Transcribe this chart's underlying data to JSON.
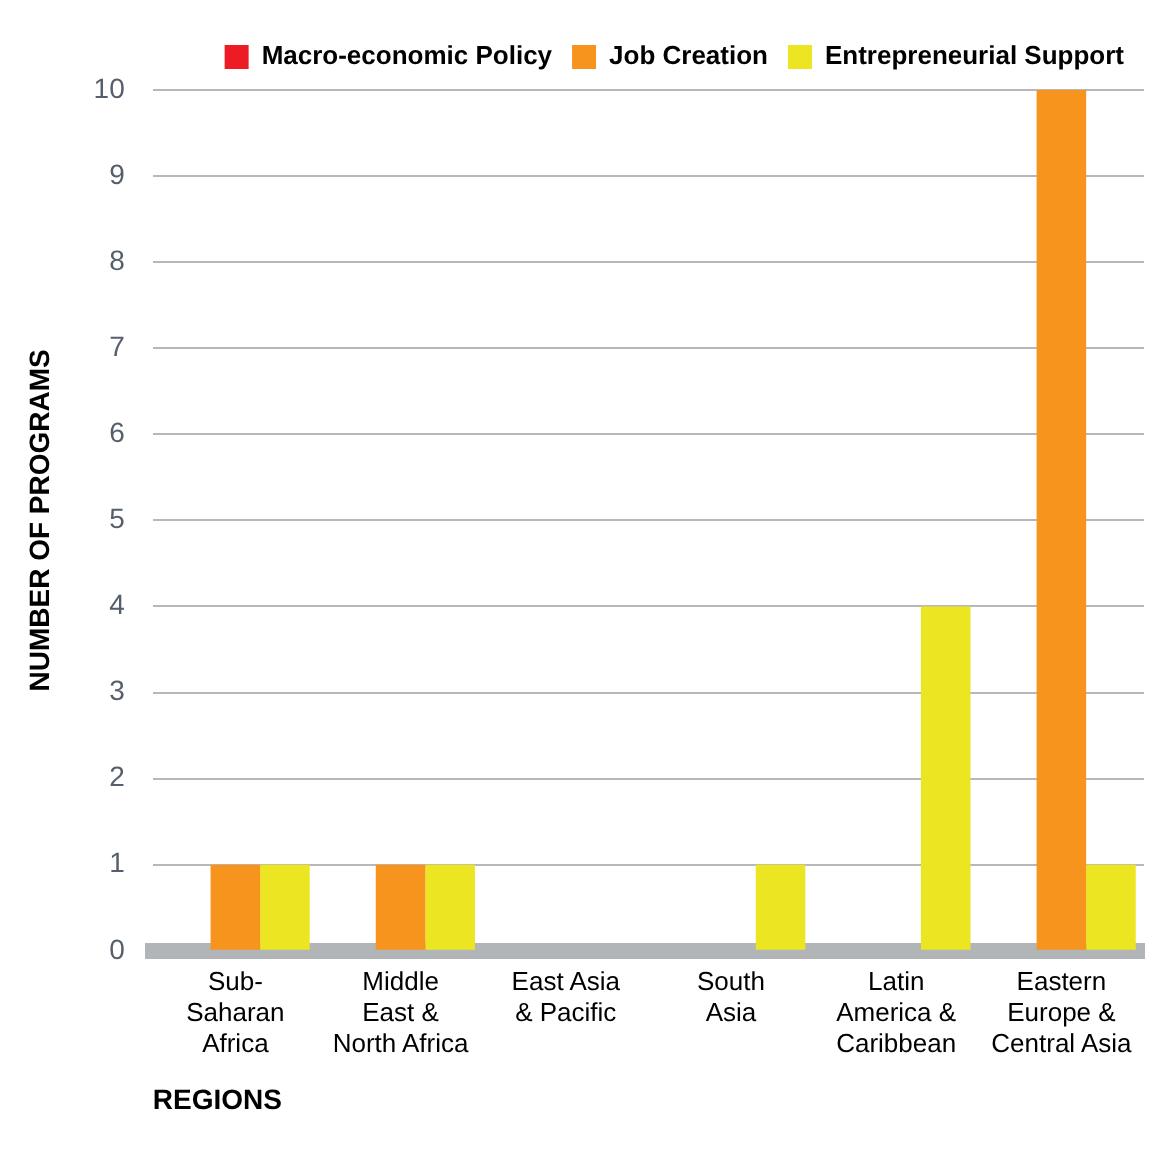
{
  "chart_data": {
    "type": "bar",
    "xlabel": "REGIONS",
    "ylabel": "NUMBER OF PROGRAMS",
    "categories": [
      "Sub-\nSaharan\nAfrica",
      "Middle\nEast &\nNorth Africa",
      "East Asia\n& Pacific",
      "South\nAsia",
      "Latin\nAmerica &\nCaribbean",
      "Eastern\nEurope &\nCentral Asia"
    ],
    "series": [
      {
        "name": "Macro-economic Policy",
        "color": "#ed1c24",
        "values": [
          0,
          0,
          0,
          0,
          0,
          0
        ]
      },
      {
        "name": "Job Creation",
        "color": "#f7941d",
        "values": [
          1,
          1,
          0,
          0,
          0,
          10
        ]
      },
      {
        "name": "Entrepreneurial Support",
        "color": "#ebe621",
        "values": [
          1,
          1,
          0,
          1,
          4,
          1
        ]
      }
    ],
    "ylim": [
      0,
      10
    ],
    "yticks": [
      0,
      1,
      2,
      3,
      4,
      5,
      6,
      7,
      8,
      9,
      10
    ],
    "grid": "y",
    "legend": "top"
  }
}
